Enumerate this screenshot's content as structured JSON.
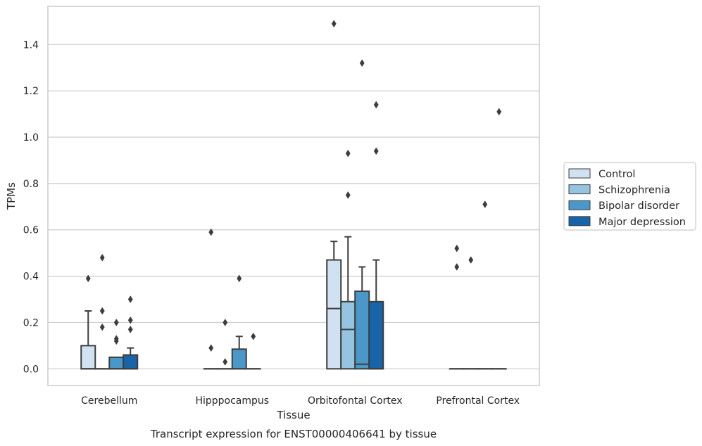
{
  "chart_data": {
    "type": "boxplot",
    "caption": "Transcript expression for ENST00000406641 by tissue",
    "xlabel": "Tissue",
    "ylabel": "TPMs",
    "ylim": [
      -0.072,
      1.565
    ],
    "yticks": [
      0.0,
      0.2,
      0.4,
      0.6,
      0.8,
      1.0,
      1.2,
      1.4
    ],
    "ytick_labels": [
      "0.0",
      "0.2",
      "0.4",
      "0.6",
      "0.8",
      "1.0",
      "1.2",
      "1.4"
    ],
    "grid": "horizontal",
    "legend_position": "right",
    "categories": [
      "Cerebellum",
      "Hipppocampus",
      "Orbitofontal Cortex",
      "Prefrontal Cortex"
    ],
    "series": [
      {
        "name": "Control",
        "color": "#d0e1f2",
        "boxes": [
          {
            "q1": 0.0,
            "median": 0.0,
            "q3": 0.1,
            "whisker_low": 0.0,
            "whisker_high": 0.25,
            "outliers": [
              0.39
            ]
          },
          {
            "q1": 0.0,
            "median": 0.0,
            "q3": 0.0,
            "whisker_low": 0.0,
            "whisker_high": 0.0,
            "outliers": [
              0.59,
              0.09
            ]
          },
          {
            "q1": 0.0,
            "median": 0.26,
            "q3": 0.47,
            "whisker_low": 0.0,
            "whisker_high": 0.55,
            "outliers": [
              1.49
            ]
          },
          {
            "q1": 0.0,
            "median": 0.0,
            "q3": 0.0,
            "whisker_low": 0.0,
            "whisker_high": 0.0,
            "outliers": [
              0.52,
              0.44
            ]
          }
        ]
      },
      {
        "name": "Schizophrenia",
        "color": "#94c4df",
        "boxes": [
          {
            "q1": 0.0,
            "median": 0.0,
            "q3": 0.0,
            "whisker_low": 0.0,
            "whisker_high": 0.0,
            "outliers": [
              0.48,
              0.25,
              0.18
            ]
          },
          {
            "q1": 0.0,
            "median": 0.0,
            "q3": 0.0,
            "whisker_low": 0.0,
            "whisker_high": 0.0,
            "outliers": [
              0.2,
              0.03
            ]
          },
          {
            "q1": 0.0,
            "median": 0.17,
            "q3": 0.29,
            "whisker_low": 0.0,
            "whisker_high": 0.57,
            "outliers": [
              0.93,
              0.75
            ]
          },
          {
            "q1": 0.0,
            "median": 0.0,
            "q3": 0.0,
            "whisker_low": 0.0,
            "whisker_high": 0.0,
            "outliers": [
              0.47
            ]
          }
        ]
      },
      {
        "name": "Bipolar disorder",
        "color": "#4a98c9",
        "boxes": [
          {
            "q1": 0.0,
            "median": 0.0,
            "q3": 0.05,
            "whisker_low": 0.0,
            "whisker_high": 0.05,
            "outliers": [
              0.2,
              0.13,
              0.12
            ]
          },
          {
            "q1": 0.0,
            "median": 0.0,
            "q3": 0.085,
            "whisker_low": 0.0,
            "whisker_high": 0.14,
            "outliers": [
              0.39
            ]
          },
          {
            "q1": 0.0,
            "median": 0.02,
            "q3": 0.335,
            "whisker_low": 0.0,
            "whisker_high": 0.44,
            "outliers": [
              1.32
            ]
          },
          {
            "q1": 0.0,
            "median": 0.0,
            "q3": 0.0,
            "whisker_low": 0.0,
            "whisker_high": 0.0,
            "outliers": [
              0.71
            ]
          }
        ]
      },
      {
        "name": "Major depression",
        "color": "#1764ab",
        "boxes": [
          {
            "q1": 0.0,
            "median": 0.0,
            "q3": 0.06,
            "whisker_low": 0.0,
            "whisker_high": 0.09,
            "outliers": [
              0.3,
              0.21,
              0.17
            ]
          },
          {
            "q1": 0.0,
            "median": 0.0,
            "q3": 0.0,
            "whisker_low": 0.0,
            "whisker_high": 0.0,
            "outliers": [
              0.14
            ]
          },
          {
            "q1": 0.0,
            "median": 0.0,
            "q3": 0.29,
            "whisker_low": 0.0,
            "whisker_high": 0.47,
            "outliers": [
              1.14,
              0.94
            ]
          },
          {
            "q1": 0.0,
            "median": 0.0,
            "q3": 0.0,
            "whisker_low": 0.0,
            "whisker_high": 0.0,
            "outliers": [
              1.11
            ]
          }
        ]
      }
    ],
    "style": {
      "grid_color": "#cccccc",
      "frame_color": "#cccccc",
      "line_color": "#3d3d3d",
      "text_color": "#262626"
    }
  }
}
